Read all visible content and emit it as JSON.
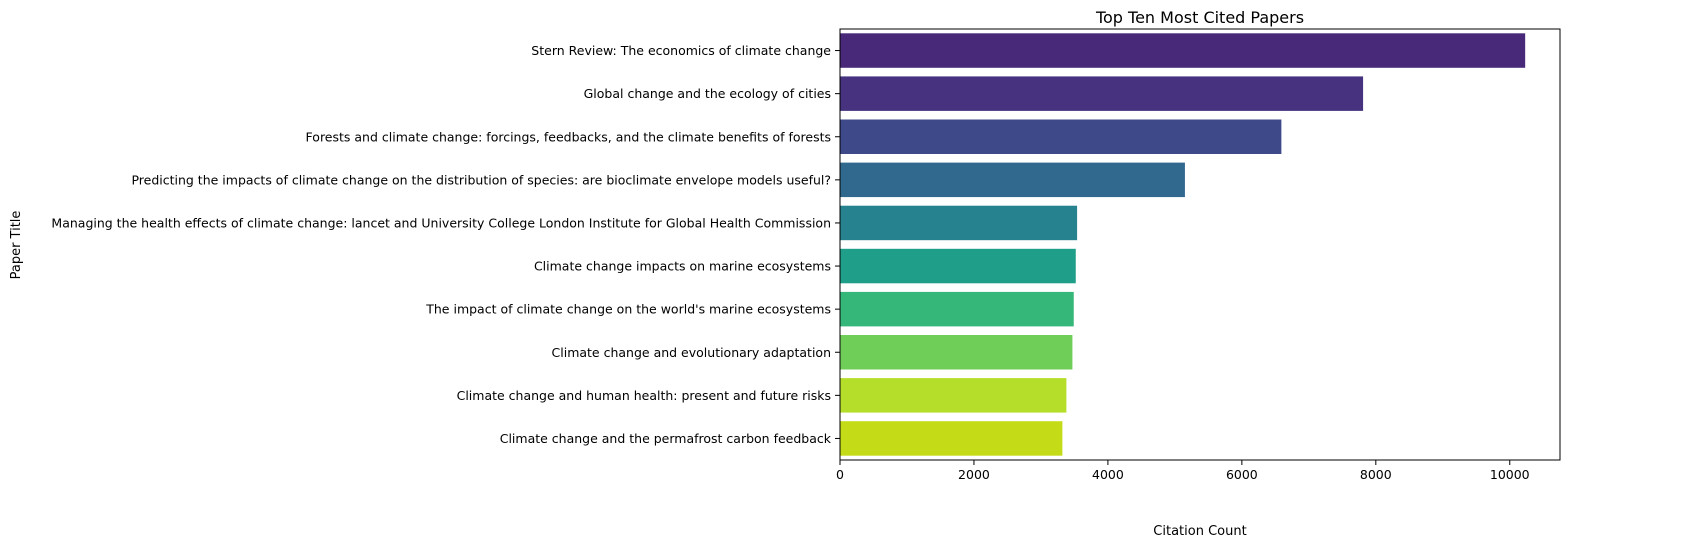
{
  "chart_data": {
    "type": "bar",
    "orientation": "horizontal",
    "title": "Top Ten Most Cited Papers",
    "xlabel": "Citation Count",
    "ylabel": "Paper Title",
    "xlim": [
      0,
      10750
    ],
    "xticks": [
      0,
      2000,
      4000,
      6000,
      8000,
      10000
    ],
    "grid": false,
    "legend": "none",
    "categories": [
      "Stern Review: The economics of climate change",
      "Global change and the ecology of cities",
      "Forests and climate change: forcings, feedbacks, and the climate benefits of forests",
      "Predicting the impacts of climate change on the distribution of species: are bioclimate envelope models useful?",
      "Managing the health effects of climate change: lancet and University College London Institute for Global Health Commission",
      "Climate change impacts on marine ecosystems",
      "The impact of climate change on the world's marine ecosystems",
      "Climate change and evolutionary adaptation",
      "Climate change and human health: present and future risks",
      "Climate change and the permafrost carbon feedback"
    ],
    "values": [
      10230,
      7810,
      6590,
      5150,
      3540,
      3520,
      3490,
      3470,
      3380,
      3320
    ],
    "colors": [
      "#482878",
      "#46327e",
      "#3e4989",
      "#31688e",
      "#26828e",
      "#1f9e89",
      "#35b779",
      "#6ece58",
      "#b5de2b",
      "#c4dc17"
    ]
  }
}
